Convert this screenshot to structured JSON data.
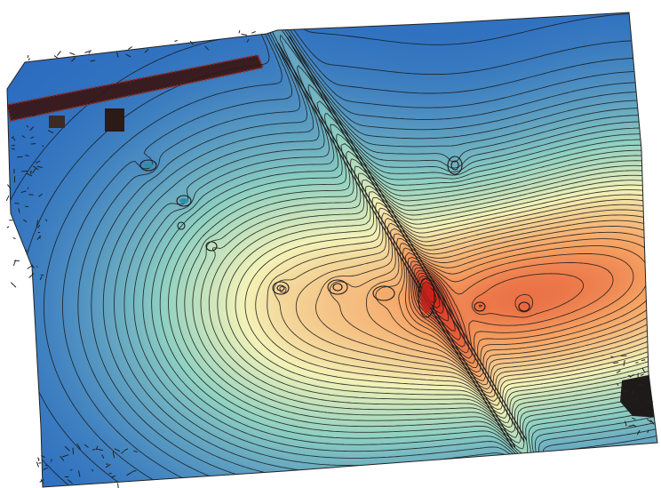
{
  "map": {
    "type": "elevation-contour-map",
    "colormap": {
      "low": "#2b6cc0",
      "mid_low": "#8fd1c2",
      "mid": "#f4f3b8",
      "mid_high": "#f5a061",
      "high": "#d71f17"
    },
    "contour_color": "#1a1a1a",
    "features": [
      "diagonal-ridge-strip",
      "dark-wall-strip",
      "ring-contours",
      "mesh-edges"
    ]
  }
}
